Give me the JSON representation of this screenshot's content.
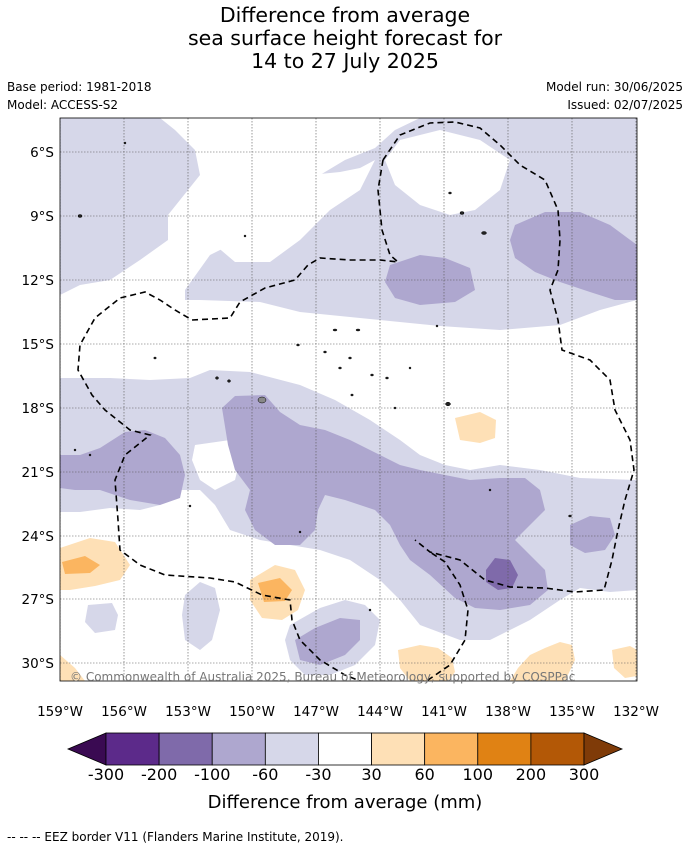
{
  "title": {
    "line1": "Difference from average",
    "line2": "sea surface height forecast for",
    "line3": "14 to 27 July 2025"
  },
  "meta": {
    "base_period": "Base period: 1981-2018",
    "model": "Model: ACCESS-S2",
    "model_run": "Model run: 30/06/2025",
    "issued": "Issued: 02/07/2025"
  },
  "map": {
    "lon_labels": [
      "159°W",
      "156°W",
      "153°W",
      "150°W",
      "147°W",
      "144°W",
      "141°W",
      "138°W",
      "135°W",
      "132°W"
    ],
    "lat_labels": [
      "6°S",
      "9°S",
      "12°S",
      "15°S",
      "18°S",
      "21°S",
      "24°S",
      "27°S",
      "30°S"
    ],
    "copyright": "© Commonwealth of Australia 2025, Bureau of Meteorology, supported by COSPPac"
  },
  "colorbar": {
    "title": "Difference from average (mm)",
    "ticks": [
      "-300",
      "-200",
      "-100",
      "-60",
      "-30",
      "30",
      "60",
      "100",
      "200",
      "300"
    ],
    "colors": {
      "under": "#3a0a52",
      "bins": [
        "#5c2a8a",
        "#7f6aaa",
        "#aea7cf",
        "#d6d7e9",
        "#ffffff",
        "#fee0b6",
        "#fbb560",
        "#e08214",
        "#b35806"
      ],
      "over": "#7f3b08"
    }
  },
  "footer": {
    "eez_note": "--  --  -- EEZ border V11 (Flanders Marine Institute, 2019)."
  }
}
